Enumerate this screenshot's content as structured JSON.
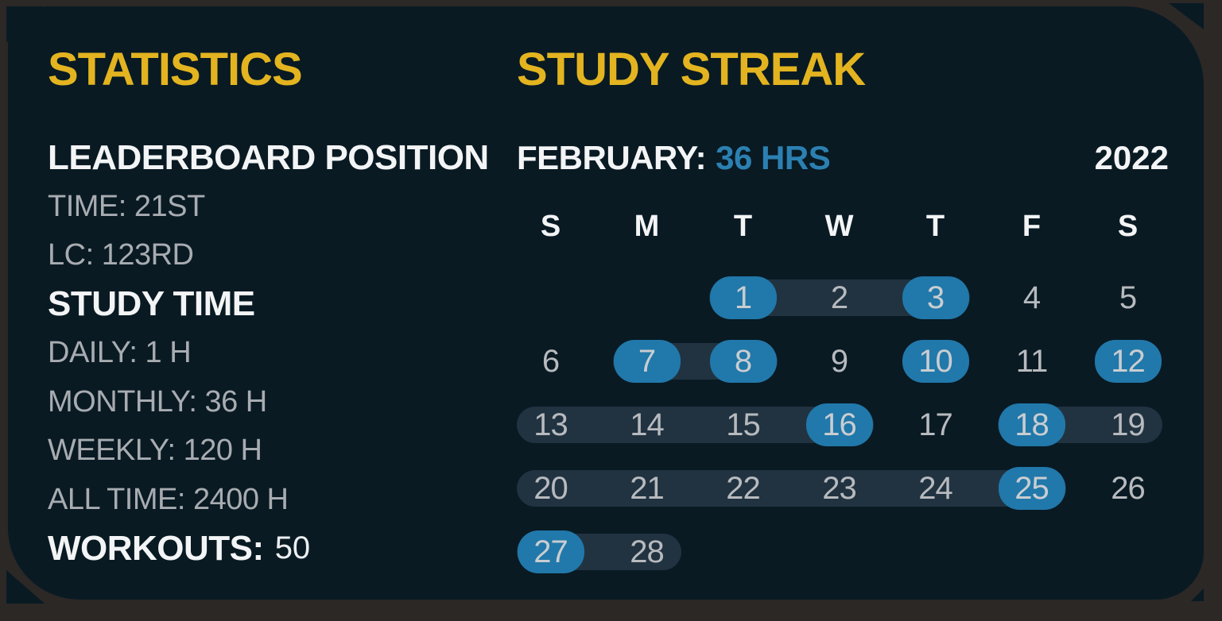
{
  "colors": {
    "frame_bg": "#2b2826",
    "card_bg": "#091a23",
    "accent_yellow": "#e3b420",
    "accent_blue": "#2178aa",
    "hours_text_blue": "#2c80b1",
    "range_pill": "#213341",
    "text_white": "#f3f4f5",
    "text_gray": "#a8acb1"
  },
  "stats": {
    "title": "STATISTICS",
    "lines": [
      {
        "style": "heading",
        "text": "LEADERBOARD POSITION"
      },
      {
        "style": "value",
        "text": "TIME: 21ST"
      },
      {
        "style": "value",
        "text": "LC: 123RD"
      },
      {
        "style": "heading",
        "text": "STUDY TIME"
      },
      {
        "style": "value",
        "text": "DAILY: 1 H"
      },
      {
        "style": "value",
        "text": "MONTHLY: 36 H"
      },
      {
        "style": "value",
        "text": "WEEKLY: 120 H"
      },
      {
        "style": "value",
        "text": "ALL TIME: 2400 H"
      },
      {
        "style": "split",
        "label": "WORKOUTS:",
        "value": "50"
      }
    ]
  },
  "streak": {
    "title": "STUDY STREAK",
    "month_label": "FEBRUARY:",
    "month_total": "36 HRS",
    "year": "2022",
    "day_headers": [
      "S",
      "M",
      "T",
      "W",
      "T",
      "F",
      "S"
    ],
    "first_day_col": 2,
    "days_in_month": 28,
    "highlighted_days": [
      1,
      3,
      7,
      8,
      10,
      12,
      16,
      18,
      25,
      27
    ],
    "streak_ranges": [
      [
        1,
        3
      ],
      [
        7,
        8
      ],
      [
        13,
        16
      ],
      [
        18,
        19
      ],
      [
        20,
        25
      ],
      [
        27,
        28
      ]
    ]
  }
}
